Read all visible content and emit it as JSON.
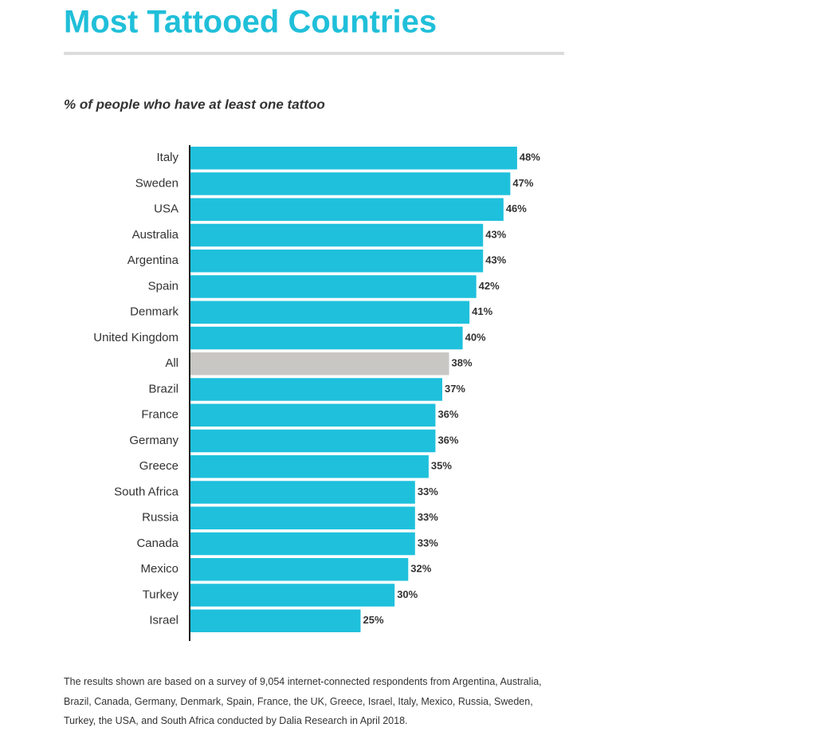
{
  "chart_data": {
    "type": "hbar",
    "title": "Most Tattooed Countries",
    "subtitle": "% of people who have at least one tattoo",
    "categories": [
      "Italy",
      "Sweden",
      "USA",
      "Australia",
      "Argentina",
      "Spain",
      "Denmark",
      "United Kingdom",
      "All",
      "Brazil",
      "France",
      "Germany",
      "Greece",
      "South Africa",
      "Russia",
      "Canada",
      "Mexico",
      "Turkey",
      "Israel"
    ],
    "values": [
      48,
      47,
      46,
      43,
      43,
      42,
      41,
      40,
      38,
      37,
      36,
      36,
      35,
      33,
      33,
      33,
      32,
      30,
      25
    ],
    "value_labels": [
      "48%",
      "47%",
      "46%",
      "43%",
      "43%",
      "42%",
      "41%",
      "40%",
      "38%",
      "37%",
      "36%",
      "36%",
      "35%",
      "33%",
      "33%",
      "33%",
      "32%",
      "30%",
      "25%"
    ],
    "colors": [
      "#1fc0dc",
      "#1fc0dc",
      "#1fc0dc",
      "#1fc0dc",
      "#1fc0dc",
      "#1fc0dc",
      "#1fc0dc",
      "#1fc0dc",
      "#c9c7c4",
      "#1fc0dc",
      "#1fc0dc",
      "#1fc0dc",
      "#1fc0dc",
      "#1fc0dc",
      "#1fc0dc",
      "#1fc0dc",
      "#1fc0dc",
      "#1fc0dc",
      "#1fc0dc"
    ],
    "note": "The results shown are based on a survey of 9,054 internet-connected respondents from Argentina, Australia, Brazil, Canada, Germany, Denmark, Spain, France, the UK, Greece, Israel, Italy, Mexico, Russia, Sweden, Turkey, the USA, and South Africa conducted by Dalia Research in April 2018."
  }
}
